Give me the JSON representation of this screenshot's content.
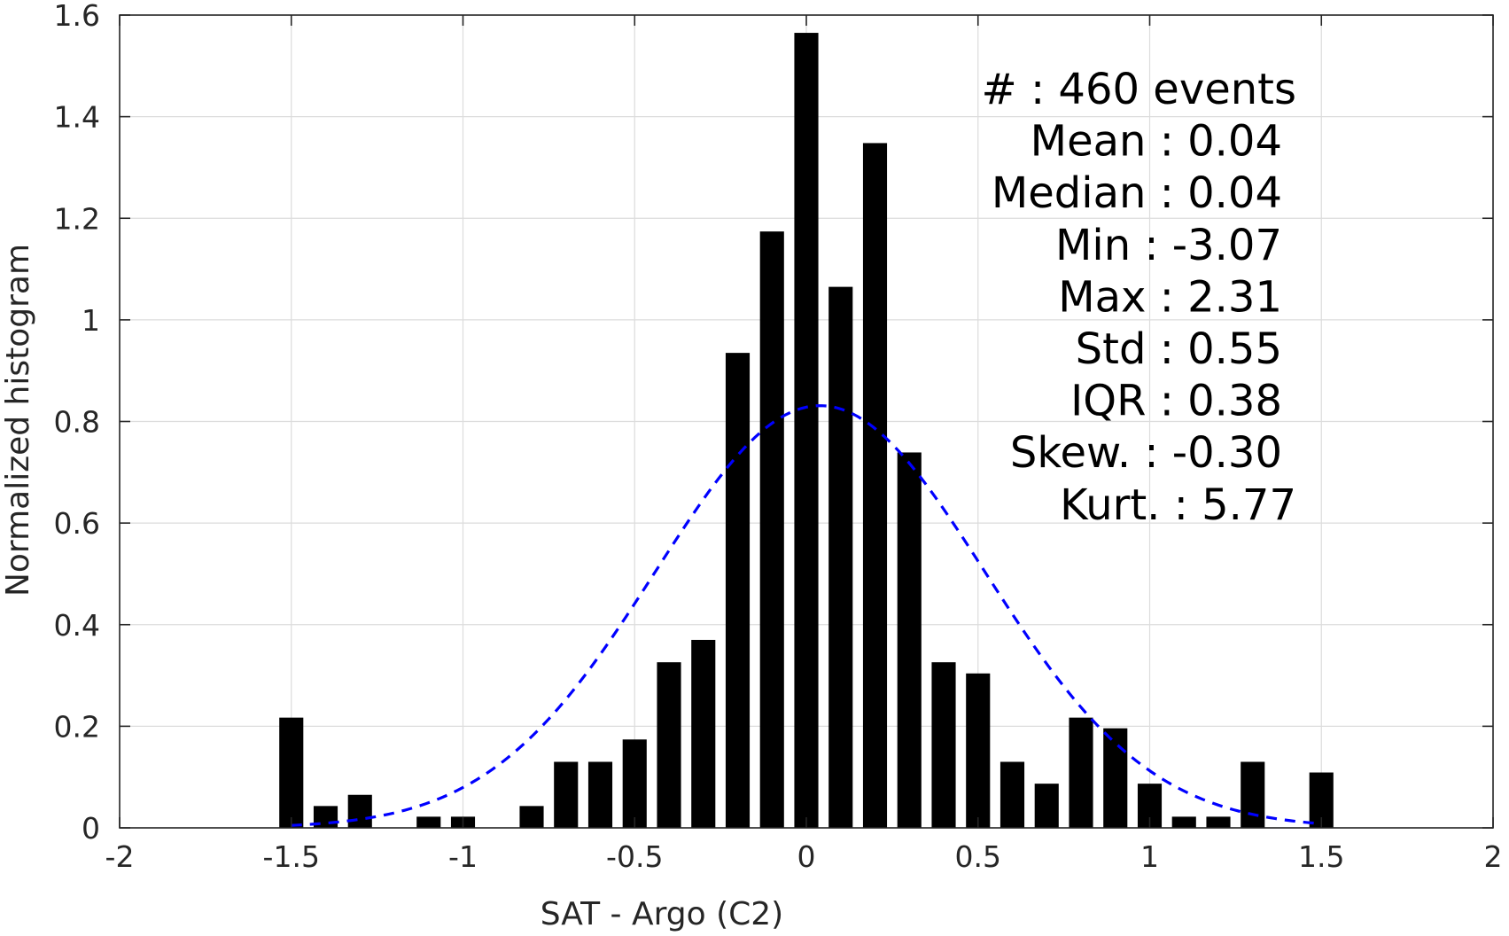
{
  "chart_data": {
    "type": "bar",
    "title": "",
    "xlabel": "SAT - Argo (C2)",
    "ylabel": "Normalized histogram",
    "xlim": [
      -2,
      2
    ],
    "ylim": [
      0,
      1.6
    ],
    "grid": true,
    "bar_width": 0.07,
    "x_ticks": [
      "-2",
      "-1.5",
      "-1",
      "-0.5",
      "0",
      "0.5",
      "1",
      "1.5",
      "2"
    ],
    "x_tick_values": [
      -2,
      -1.5,
      -1,
      -0.5,
      0,
      0.5,
      1,
      1.5,
      2
    ],
    "y_ticks": [
      "0",
      "0.2",
      "0.4",
      "0.6",
      "0.8",
      "1",
      "1.2",
      "1.4",
      "1.6"
    ],
    "y_tick_values": [
      0,
      0.2,
      0.4,
      0.6,
      0.8,
      1.0,
      1.2,
      1.4,
      1.6
    ],
    "x": [
      -1.5,
      -1.4,
      -1.3,
      -1.1,
      -1.0,
      -0.8,
      -0.7,
      -0.6,
      -0.5,
      -0.4,
      -0.3,
      -0.2,
      -0.1,
      0.0,
      0.1,
      0.2,
      0.3,
      0.4,
      0.5,
      0.6,
      0.7,
      0.8,
      0.9,
      1.0,
      1.1,
      1.2,
      1.3,
      1.5
    ],
    "values": [
      0.217,
      0.043,
      0.065,
      0.022,
      0.022,
      0.043,
      0.13,
      0.13,
      0.174,
      0.326,
      0.37,
      0.935,
      1.174,
      1.565,
      1.065,
      1.348,
      0.739,
      0.326,
      0.304,
      0.13,
      0.087,
      0.217,
      0.196,
      0.087,
      0.022,
      0.022,
      0.13,
      0.109
    ],
    "bar_color": "#000000",
    "gaussian_fit": {
      "mean": 0.04,
      "std": 0.48,
      "range": [
        -1.5,
        1.5
      ],
      "color": "#0000ff",
      "style": "dashed"
    },
    "stats": [
      {
        "label": "#  : 460 events"
      },
      {
        "label": "Mean : 0.04"
      },
      {
        "label": "Median : 0.04"
      },
      {
        "label": "Min : -3.07"
      },
      {
        "label": "Max : 2.31"
      },
      {
        "label": "Std : 0.55"
      },
      {
        "label": "IQR : 0.38"
      },
      {
        "label": "Skew. : -0.30"
      },
      {
        "label": "Kurt. : 5.77"
      }
    ]
  }
}
